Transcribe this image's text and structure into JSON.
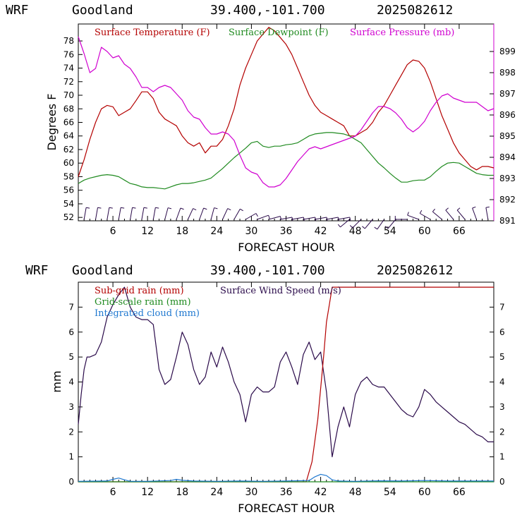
{
  "charts": [
    {
      "header": {
        "model": "WRF",
        "station": "Goodland",
        "coords": "39.400,-101.700",
        "run": "2025082612"
      },
      "xlabel": "FORECAST HOUR",
      "ylabel_left": "Degrees F",
      "xticks": [
        6,
        12,
        18,
        24,
        30,
        36,
        42,
        48,
        54,
        60,
        66
      ],
      "yticks_left": [
        52,
        54,
        56,
        58,
        60,
        62,
        64,
        66,
        68,
        70,
        72,
        74,
        76,
        78
      ],
      "yticks_right": [
        891,
        892,
        893,
        894,
        895,
        896,
        897,
        898,
        899
      ],
      "legend": [
        {
          "label": "Surface Temperature (F)",
          "color": "#b40000"
        },
        {
          "label": "Surface Dewpoint (F)",
          "color": "#1f8a1f"
        },
        {
          "label": "Surface Pressure (mb)",
          "color": "#d000d0"
        }
      ]
    },
    {
      "header": {
        "model": "WRF",
        "station": "Goodland",
        "coords": "39.400,-101.700",
        "run": "2025082612"
      },
      "xlabel": "FORECAST HOUR",
      "ylabel_left": "mm",
      "xticks": [
        6,
        12,
        18,
        24,
        30,
        36,
        42,
        48,
        54,
        60,
        66
      ],
      "yticks_left": [
        0,
        1,
        2,
        3,
        4,
        5,
        6,
        7
      ],
      "yticks_right": [
        0,
        1,
        2,
        3,
        4,
        5,
        6,
        7
      ],
      "legend": [
        {
          "label": "Sub-grid rain (mm)",
          "color": "#b40000"
        },
        {
          "label": "Surface Wind Speed (m/s)",
          "color": "#2a0a4a"
        },
        {
          "label": "Grid-scale rain (mm)",
          "color": "#1f8a1f"
        },
        {
          "label": "Integrated cloud (mm)",
          "color": "#1f78d0"
        }
      ]
    }
  ],
  "chart_data": [
    {
      "type": "line",
      "xlim": [
        0,
        72
      ],
      "ylim_left": [
        51.5,
        80.5
      ],
      "ylim_right": [
        891,
        900.3
      ],
      "series": [
        {
          "name": "Surface Temperature (F)",
          "axis": "left",
          "color": "#b40000",
          "x": [
            0,
            1,
            2,
            3,
            4,
            5,
            6,
            7,
            8,
            9,
            10,
            11,
            12,
            13,
            14,
            15,
            16,
            17,
            18,
            19,
            20,
            21,
            22,
            23,
            24,
            25,
            26,
            27,
            28,
            29,
            30,
            31,
            32,
            33,
            34,
            35,
            36,
            37,
            38,
            39,
            40,
            41,
            42,
            43,
            44,
            45,
            46,
            47,
            48,
            49,
            50,
            51,
            52,
            53,
            54,
            55,
            56,
            57,
            58,
            59,
            60,
            61,
            62,
            63,
            64,
            65,
            66,
            67,
            68,
            69,
            70,
            71,
            72
          ],
          "y": [
            58.0,
            60.5,
            63.5,
            66.0,
            68.0,
            68.5,
            68.3,
            67.0,
            67.5,
            68.0,
            69.2,
            70.5,
            70.5,
            69.5,
            67.5,
            66.5,
            66.0,
            65.5,
            64.0,
            63.0,
            62.5,
            63.0,
            61.5,
            62.5,
            62.5,
            63.5,
            65.5,
            68.0,
            71.5,
            74.0,
            76.0,
            78.0,
            79.0,
            80.0,
            79.5,
            78.5,
            77.5,
            76.0,
            74.0,
            72.0,
            70.0,
            68.5,
            67.5,
            67.0,
            66.5,
            66.0,
            65.5,
            64.0,
            64.0,
            64.5,
            65.0,
            66.0,
            67.5,
            68.5,
            70.0,
            71.5,
            73.0,
            74.5,
            75.2,
            75.0,
            74.0,
            72.0,
            69.5,
            67.0,
            65.0,
            63.0,
            61.5,
            60.5,
            59.5,
            59.0,
            59.5,
            59.5,
            59.3
          ]
        },
        {
          "name": "Surface Dewpoint (F)",
          "axis": "left",
          "color": "#1f8a1f",
          "x": [
            0,
            1,
            2,
            3,
            4,
            5,
            6,
            7,
            8,
            9,
            10,
            11,
            12,
            13,
            14,
            15,
            16,
            17,
            18,
            19,
            20,
            21,
            22,
            23,
            24,
            25,
            26,
            27,
            28,
            29,
            30,
            31,
            32,
            33,
            34,
            35,
            36,
            37,
            38,
            39,
            40,
            41,
            42,
            43,
            44,
            45,
            46,
            47,
            48,
            49,
            50,
            51,
            52,
            53,
            54,
            55,
            56,
            57,
            58,
            59,
            60,
            61,
            62,
            63,
            64,
            65,
            66,
            67,
            68,
            69,
            70,
            71,
            72
          ],
          "y": [
            57.0,
            57.5,
            57.8,
            58.0,
            58.2,
            58.3,
            58.2,
            58.0,
            57.5,
            57.0,
            56.8,
            56.5,
            56.4,
            56.4,
            56.3,
            56.2,
            56.5,
            56.8,
            57.0,
            57.0,
            57.1,
            57.3,
            57.5,
            57.8,
            58.5,
            59.2,
            60.0,
            60.8,
            61.5,
            62.2,
            63.0,
            63.2,
            62.5,
            62.3,
            62.5,
            62.5,
            62.7,
            62.8,
            63.0,
            63.5,
            64.0,
            64.3,
            64.4,
            64.5,
            64.5,
            64.4,
            64.3,
            64.0,
            63.5,
            63.0,
            62.0,
            61.0,
            60.0,
            59.3,
            58.5,
            57.8,
            57.2,
            57.2,
            57.4,
            57.5,
            57.5,
            58.0,
            58.8,
            59.5,
            60.0,
            60.1,
            60.0,
            59.5,
            59.0,
            58.5,
            58.3,
            58.2,
            58.2
          ]
        },
        {
          "name": "Surface Pressure (mb)",
          "axis": "right",
          "color": "#d000d0",
          "x": [
            0,
            1,
            2,
            3,
            4,
            5,
            6,
            7,
            8,
            9,
            10,
            11,
            12,
            13,
            14,
            15,
            16,
            17,
            18,
            19,
            20,
            21,
            22,
            23,
            24,
            25,
            26,
            27,
            28,
            29,
            30,
            31,
            32,
            33,
            34,
            35,
            36,
            37,
            38,
            39,
            40,
            41,
            42,
            43,
            44,
            45,
            46,
            47,
            48,
            49,
            50,
            51,
            52,
            53,
            54,
            55,
            56,
            57,
            58,
            59,
            60,
            61,
            62,
            63,
            64,
            65,
            66,
            67,
            68,
            69,
            70,
            71,
            72
          ],
          "y": [
            899.7,
            898.9,
            898.0,
            898.2,
            899.2,
            899.0,
            898.7,
            898.8,
            898.4,
            898.2,
            897.8,
            897.3,
            897.3,
            897.1,
            897.3,
            897.4,
            897.3,
            897.0,
            896.7,
            896.2,
            895.9,
            895.8,
            895.4,
            895.1,
            895.1,
            895.2,
            895.1,
            894.8,
            894.1,
            893.5,
            893.3,
            893.2,
            892.8,
            892.6,
            892.6,
            892.7,
            893.0,
            893.4,
            893.8,
            894.1,
            894.4,
            894.5,
            894.4,
            894.5,
            894.6,
            894.7,
            894.8,
            894.9,
            895.0,
            895.3,
            895.7,
            896.1,
            896.4,
            896.4,
            896.3,
            896.1,
            895.8,
            895.4,
            895.2,
            895.4,
            895.7,
            896.2,
            896.6,
            896.9,
            897.0,
            896.8,
            896.7,
            896.6,
            896.6,
            896.6,
            896.4,
            896.2,
            896.3
          ]
        }
      ],
      "wind_barbs": {
        "x": [
          1,
          3,
          5,
          7,
          9,
          11,
          13,
          15,
          17,
          19,
          21,
          23,
          25,
          27,
          29,
          31,
          33,
          35,
          37,
          39,
          41,
          43,
          45,
          47,
          49,
          51,
          53,
          55,
          57,
          59,
          61,
          63,
          65,
          67,
          69,
          71
        ],
        "direction_deg": [
          10,
          10,
          10,
          10,
          10,
          10,
          10,
          15,
          20,
          25,
          20,
          15,
          25,
          30,
          60,
          70,
          75,
          80,
          80,
          80,
          80,
          80,
          80,
          230,
          225,
          220,
          215,
          220,
          270,
          290,
          300,
          310,
          320,
          320,
          340,
          350
        ]
      }
    },
    {
      "type": "line",
      "xlim": [
        0,
        72
      ],
      "ylim_left": [
        0,
        8.0
      ],
      "ylim_right": [
        0,
        8.0
      ],
      "series": [
        {
          "name": "Surface Wind Speed (m/s)",
          "axis": "right",
          "color": "#2a0a4a",
          "x": [
            0,
            0.5,
            1,
            1.5,
            2,
            3,
            4,
            5,
            6,
            7,
            8,
            9,
            10,
            11,
            12,
            13,
            14,
            15,
            16,
            17,
            18,
            19,
            20,
            21,
            22,
            23,
            24,
            25,
            26,
            27,
            28,
            29,
            30,
            31,
            32,
            33,
            34,
            35,
            36,
            37,
            38,
            39,
            40,
            41,
            42,
            43,
            44,
            45,
            46,
            47,
            48,
            49,
            50,
            51,
            52,
            53,
            54,
            55,
            56,
            57,
            58,
            59,
            60,
            61,
            62,
            63,
            64,
            65,
            66,
            67,
            68,
            69,
            70,
            71,
            72
          ],
          "y": [
            2.3,
            3.5,
            4.5,
            5.0,
            5.0,
            5.1,
            5.6,
            6.6,
            7.1,
            7.5,
            7.8,
            7.0,
            6.6,
            6.5,
            6.5,
            6.3,
            4.5,
            3.9,
            4.1,
            5.0,
            6.0,
            5.5,
            4.5,
            3.9,
            4.2,
            5.2,
            4.6,
            5.4,
            4.8,
            4.0,
            3.5,
            2.4,
            3.5,
            3.8,
            3.6,
            3.6,
            3.8,
            4.8,
            5.2,
            4.6,
            3.9,
            5.1,
            5.6,
            4.9,
            5.2,
            3.6,
            1.0,
            2.2,
            3.0,
            2.2,
            3.5,
            4.0,
            4.2,
            3.9,
            3.8,
            3.8,
            3.5,
            3.2,
            2.9,
            2.7,
            2.6,
            3.0,
            3.7,
            3.5,
            3.2,
            3.0,
            2.8,
            2.6,
            2.4,
            2.3,
            2.1,
            1.9,
            1.8,
            1.6,
            1.6
          ]
        },
        {
          "name": "Sub-grid rain (mm)",
          "axis": "left",
          "color": "#b40000",
          "x": [
            0,
            39.5,
            40.5,
            41.5,
            42.5,
            43,
            43.5,
            44,
            72
          ],
          "y": [
            0,
            0,
            0.8,
            2.5,
            5.0,
            6.4,
            7.1,
            7.8,
            7.8
          ]
        },
        {
          "name": "Grid-scale rain (mm)",
          "axis": "left",
          "color": "#1f8a1f",
          "x": [
            0,
            72
          ],
          "y": [
            0,
            0
          ]
        },
        {
          "name": "Integrated cloud (mm)",
          "axis": "left",
          "color": "#1f78d0",
          "x": [
            0,
            5,
            6,
            7,
            8,
            9,
            12,
            16,
            17,
            18,
            20,
            24,
            28,
            32,
            36,
            40,
            41,
            42,
            43,
            44,
            45,
            48,
            52,
            56,
            60,
            64,
            68,
            72
          ],
          "y": [
            0.02,
            0.03,
            0.1,
            0.15,
            0.08,
            0.02,
            0.02,
            0.05,
            0.1,
            0.06,
            0.03,
            0.02,
            0.03,
            0.02,
            0.03,
            0.05,
            0.2,
            0.3,
            0.25,
            0.08,
            0.03,
            0.02,
            0.04,
            0.03,
            0.05,
            0.03,
            0.03,
            0.03
          ]
        }
      ]
    }
  ]
}
